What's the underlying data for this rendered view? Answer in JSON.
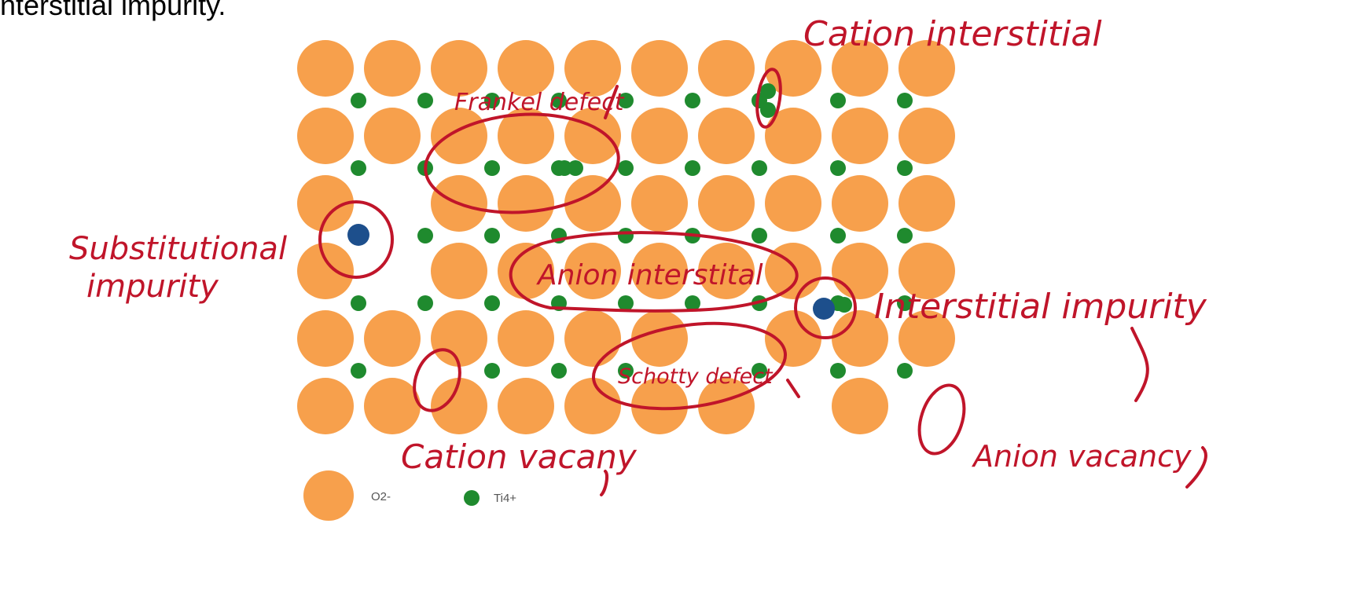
{
  "caption": "nterstitial impurity.",
  "colors": {
    "anion": "#f7a04c",
    "cation": "#1f8a2e",
    "impurity": "#1d4f8c",
    "ink": "#c0152a"
  },
  "legend": {
    "anion_label": "O2-",
    "cation_label": "Ti4+"
  },
  "annotations": {
    "cation_interstitial": "Cation interstitial",
    "frenkel_defect": "Frankel defect",
    "substitutional_line1": "Substitutional",
    "substitutional_line2": "impurity",
    "anion_interstitial": "Anion interstital",
    "interstitial_impurity": "Interstitial impurity",
    "schottky_defect": "Schotty defect",
    "cation_vacancy": "Cation vacany",
    "anion_vacancy": "Anion vacancy"
  },
  "icons": {
    "anion": "large-orange-circle",
    "cation": "small-green-dot",
    "impurity": "blue-dot",
    "defect_marker": "red-handdrawn-ellipse"
  }
}
